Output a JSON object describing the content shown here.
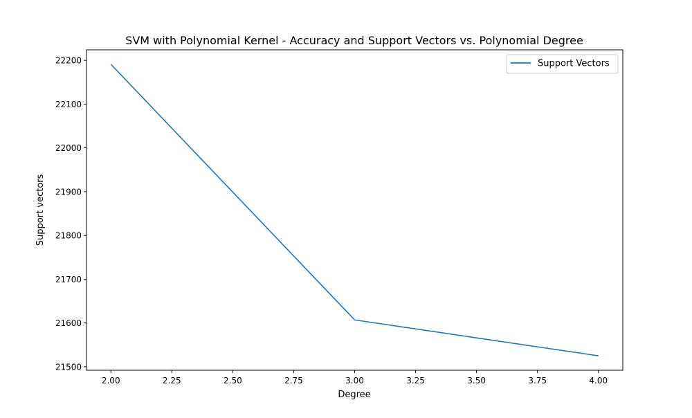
{
  "chart_data": {
    "type": "line",
    "title": "SVM with Polynomial Kernel - Accuracy and Support Vectors vs. Polynomial Degree",
    "xlabel": "Degree",
    "ylabel": "Support vectors",
    "x": [
      2,
      3,
      4
    ],
    "series": [
      {
        "name": "Support Vectors",
        "color": "#1f77b4",
        "values": [
          22191,
          21607,
          21525
        ]
      }
    ],
    "xlim": [
      1.9,
      4.1
    ],
    "ylim": [
      21492,
      22224
    ],
    "xticks": [
      2.0,
      2.25,
      2.5,
      2.75,
      3.0,
      3.25,
      3.5,
      3.75,
      4.0
    ],
    "xtick_labels": [
      "2.00",
      "2.25",
      "2.50",
      "2.75",
      "3.00",
      "3.25",
      "3.50",
      "3.75",
      "4.00"
    ],
    "yticks": [
      21500,
      21600,
      21700,
      21800,
      21900,
      22000,
      22100,
      22200
    ],
    "ytick_labels": [
      "21500",
      "21600",
      "21700",
      "21800",
      "21900",
      "22000",
      "22100",
      "22200"
    ],
    "grid": false,
    "legend": {
      "position": "top-right",
      "entries": [
        "Support Vectors"
      ]
    }
  }
}
